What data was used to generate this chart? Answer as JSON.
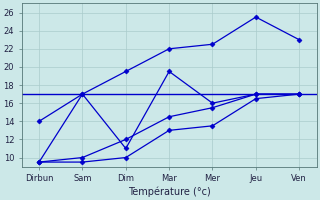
{
  "days": [
    "Dirbun",
    "Sam",
    "Dim",
    "Mar",
    "Mer",
    "Jeu",
    "Ven"
  ],
  "x_positions": [
    0,
    1,
    2,
    3,
    4,
    5,
    6
  ],
  "line1": [
    9.5,
    9.5,
    10,
    13,
    13.5,
    16.5,
    17
  ],
  "line2": [
    9.5,
    10,
    12,
    14.5,
    15.5,
    17,
    17
  ],
  "line3": [
    14,
    17,
    11,
    19.5,
    16,
    17,
    17
  ],
  "line4": [
    9.5,
    17,
    19.5,
    22,
    22.5,
    25.5,
    23
  ],
  "hline_y": 17,
  "ylim": [
    9.0,
    27.0
  ],
  "yticks": [
    10,
    12,
    14,
    16,
    18,
    20,
    22,
    24,
    26
  ],
  "color": "#0000cc",
  "bg_color": "#cce8e8",
  "grid_color": "#aacccc",
  "xlabel": "Température (°c)",
  "label_fontsize": 7,
  "tick_fontsize": 6
}
